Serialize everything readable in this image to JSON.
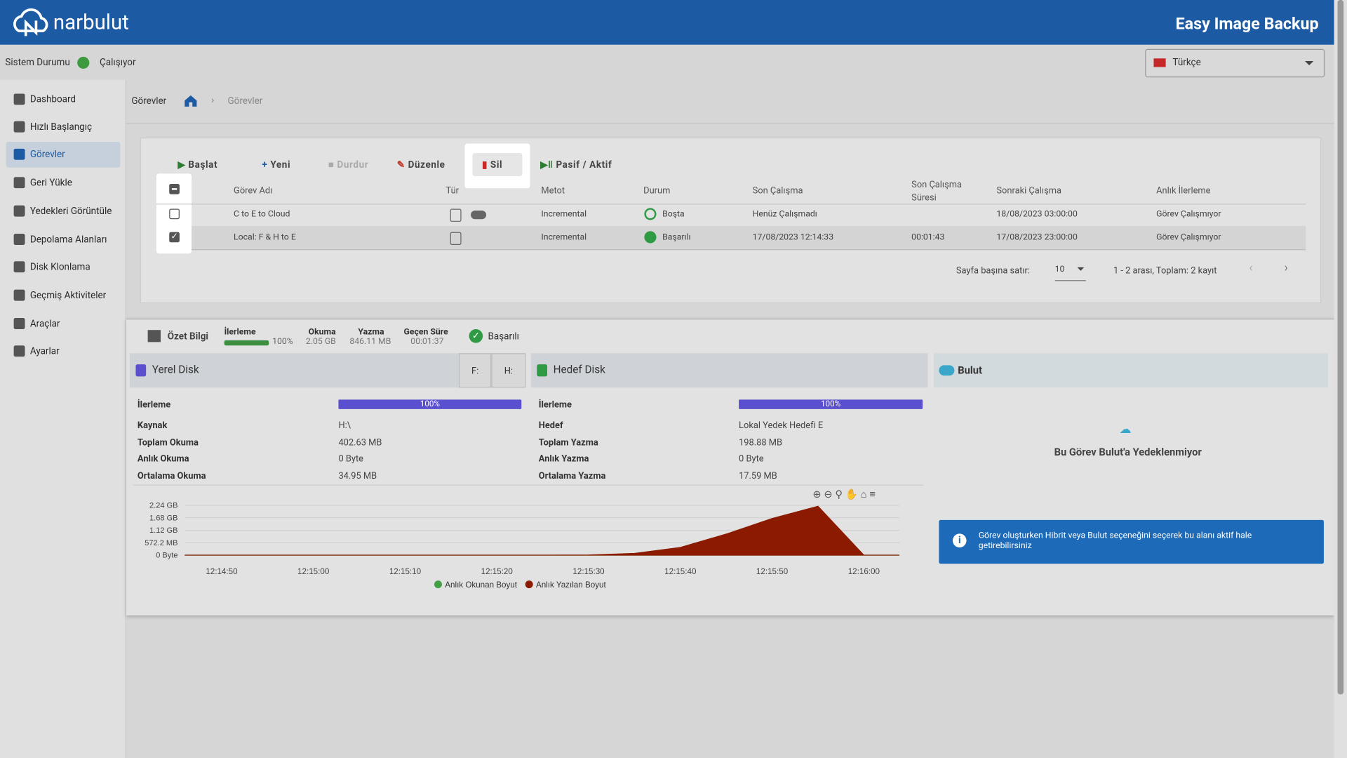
{
  "header": {
    "brand": "narbulut",
    "product": "Easy Image Backup"
  },
  "status": {
    "label": "Sistem Durumu",
    "value": "Çalışıyor",
    "language": "Türkçe"
  },
  "sidebar": [
    "Dashboard",
    "Hızlı Başlangıç",
    "Görevler",
    "Geri Yükle",
    "Yedekleri Görüntüle",
    "Depolama Alanları",
    "Disk Klonlama",
    "Geçmiş Aktiviteler",
    "Araçlar",
    "Ayarlar"
  ],
  "breadcrumb": {
    "title": "Görevler",
    "current": "Görevler"
  },
  "toolbar": [
    "Başlat",
    "Yeni",
    "Durdur",
    "Düzenle",
    "Sil",
    "Pasif / Aktif"
  ],
  "table": {
    "columns": [
      "Görev Adı",
      "Tür",
      "Metot",
      "Durum",
      "Son Çalışma",
      "Son Çalışma Süresi",
      "Sonraki Çalışma",
      "Anlık İlerleme"
    ],
    "rows": [
      {
        "name": "C to E to Cloud",
        "method": "Incremental",
        "status": "Boşta",
        "last_run": "Henüz Çalışmadı",
        "next_run": "18/08/2023 03:00:00",
        "progress": "Görev Çalışmıyor"
      },
      {
        "name": "Local: F & H to E",
        "method": "Incremental",
        "status": "Başarılı",
        "last_run": "17/08/2023 12:14:33",
        "last_duration": "00:01:43",
        "next_run": "17/08/2023 23:00:00",
        "progress": "Görev Çalışmıyor"
      }
    ]
  },
  "pagination": {
    "rows_per_page_label": "Sayfa başına satır:",
    "rows_per_page": 10,
    "range": "1 - 2 arası, Toplam: 2 kayıt"
  },
  "summary": {
    "title": "Özet Bilgi",
    "stats": [
      {
        "label": "İlerleme",
        "value": "100%"
      },
      {
        "label": "Okuma",
        "value": "2.05 GB"
      },
      {
        "label": "Yazma",
        "value": "846.11 MB"
      },
      {
        "label": "Geçen Süre",
        "value": "00:01:37"
      }
    ],
    "status": "Başarılı"
  },
  "local_disk": {
    "title": "Yerel Disk",
    "drives": [
      "F:",
      "H:"
    ],
    "progress": {
      "label": "İlerleme",
      "value": "100%"
    },
    "rows": [
      [
        "Kaynak",
        "H:\\"
      ],
      [
        "Toplam Okuma",
        "402.63 MB"
      ],
      [
        "Anlık Okuma",
        "0 Byte"
      ],
      [
        "Ortalama Okuma",
        "34.95 MB"
      ]
    ]
  },
  "target_disk": {
    "title": "Hedef Disk",
    "progress": {
      "label": "İlerleme",
      "value": "100%"
    },
    "rows": [
      [
        "Hedef",
        "Lokal Yedek Hedefi E"
      ],
      [
        "Toplam Yazma",
        "198.88 MB"
      ],
      [
        "Anlık Yazma",
        "0 Byte"
      ],
      [
        "Ortalama Yazma",
        "17.59 MB"
      ]
    ]
  },
  "cloud": {
    "title": "Bulut",
    "message": "Bu Görev Bulut'a Yedeklenmiyor",
    "info": "Görev oluşturken Hibrit veya Bulut seçeneğini seçerek bu alanı aktif hale getirebilirsiniz"
  },
  "chart_data": {
    "type": "area",
    "categories": [
      "12:14:50",
      null,
      "12:15:00",
      null,
      "12:15:10",
      null,
      "12:15:20",
      null,
      "12:15:30",
      null,
      "12:15:40",
      null,
      "12:15:50",
      null,
      "12:16:00"
    ],
    "series": [
      {
        "name": "Anlık Okunan Boyut",
        "color": "#43a047",
        "values": [
          0,
          0,
          0,
          0,
          0,
          0,
          0,
          0,
          0,
          0,
          0,
          0,
          0,
          0,
          0
        ]
      },
      {
        "name": "Anlık Yazılan Boyut",
        "color": "#8b1a00",
        "values": [
          0,
          0,
          0,
          0,
          0,
          0,
          0,
          0,
          0.01,
          0.08,
          0.35,
          0.95,
          1.65,
          2.2,
          0
        ]
      }
    ],
    "ylim": [
      0,
      2.24
    ],
    "yticks": [
      {
        "value": 0,
        "label": "0 Byte"
      },
      {
        "value": 0.5588,
        "label": "572.2 MB"
      },
      {
        "value": 1.12,
        "label": "1.12 GB"
      },
      {
        "value": 1.68,
        "label": "1.68 GB"
      },
      {
        "value": 2.24,
        "label": "2.24 GB"
      }
    ]
  }
}
